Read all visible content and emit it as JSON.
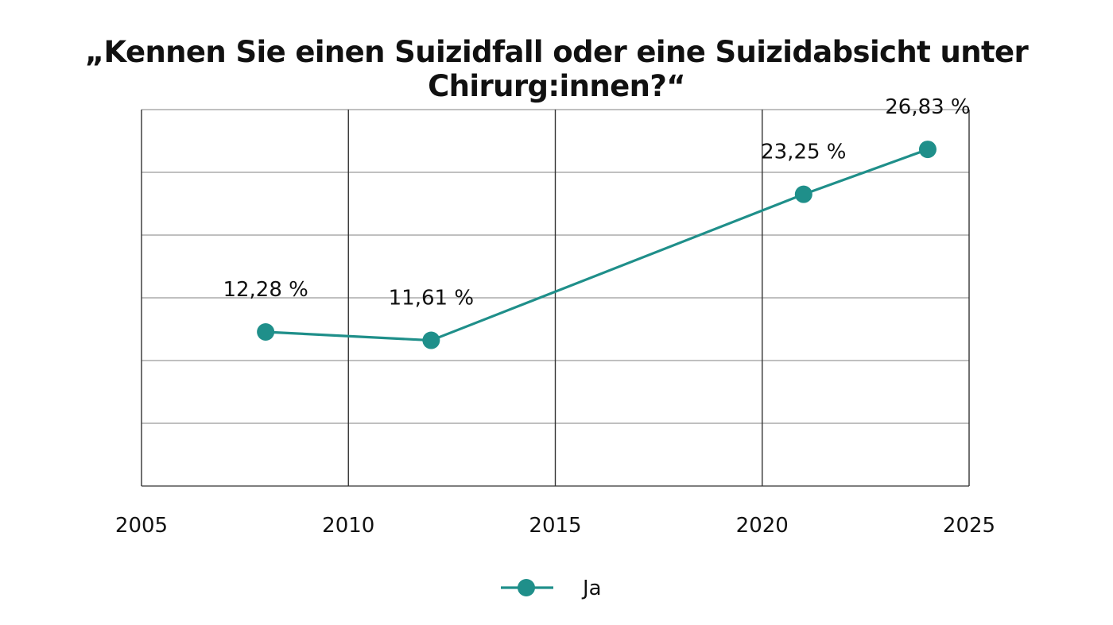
{
  "chart_data": {
    "type": "line",
    "title": "„Kennen Sie einen Suizidfall oder eine Suizidabsicht unter Chirurg:innen?“",
    "xlabel": "",
    "ylabel": "",
    "xlim": [
      2005,
      2025
    ],
    "x_ticks": [
      "2005",
      "2010",
      "2015",
      "2020",
      "2025"
    ],
    "ylim": [
      0,
      30
    ],
    "y_gridlines": [
      5,
      10,
      15,
      20,
      25,
      30
    ],
    "grid": true,
    "legend_position": "bottom-center",
    "series": [
      {
        "name": "Ja",
        "color": "#1f8f8a",
        "x": [
          2008,
          2012,
          2021,
          2024
        ],
        "values": [
          12.28,
          11.61,
          23.25,
          26.83
        ],
        "labels": [
          "12,28 %",
          "11,61 %",
          "23,25 %",
          "26,83 %"
        ]
      }
    ]
  }
}
